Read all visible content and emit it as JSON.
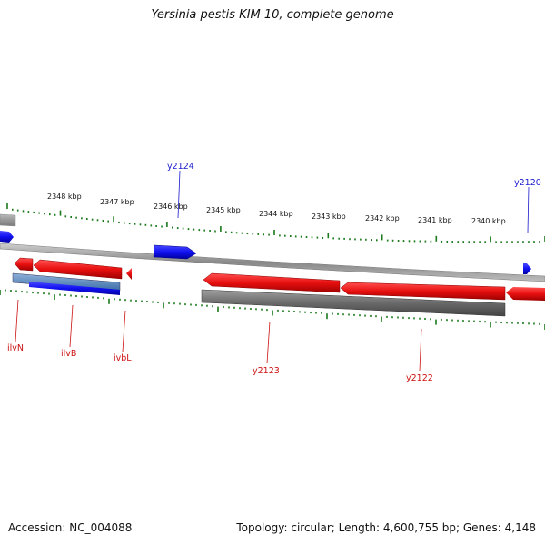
{
  "title": "Yersinia pestis KIM 10, complete genome",
  "footer": {
    "accession": "Accession: NC_004088",
    "summary": "Topology: circular; Length: 4,600,755 bp; Genes: 4,148"
  },
  "ruler_labels": [
    "2348 kbp",
    "2347 kbp",
    "2346 kbp",
    "2345 kbp",
    "2344 kbp",
    "2343 kbp",
    "2342 kbp",
    "2341 kbp",
    "2340 kbp"
  ],
  "genes_top": [
    "y2124",
    "y2120"
  ],
  "genes_bottom": [
    "ilvN",
    "ilvB",
    "ivbL",
    "y2123",
    "y2122"
  ],
  "colors": {
    "forward_gene": "#1a1add",
    "reverse_gene": "#e01010",
    "rna": "#777777",
    "backbone": "#888888",
    "ticks": "#1b7a1b"
  }
}
